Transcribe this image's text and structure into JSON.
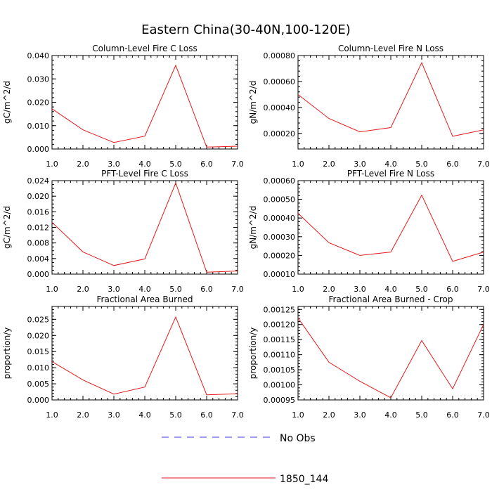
{
  "figure": {
    "title": "Eastern China(30-40N,100-120E)"
  },
  "legend": {
    "entries": [
      {
        "label": "No Obs",
        "color": "#3b3bd9",
        "dash": "dashed"
      },
      {
        "label": "1850_144",
        "color": "#e31a1c",
        "dash": "solid"
      }
    ]
  },
  "chart_data": [
    {
      "type": "line",
      "title": "Column-Level Fire C Loss",
      "ylabel": "gC/m^2/d",
      "xlim": [
        1,
        7
      ],
      "ylim": [
        0,
        0.04
      ],
      "xticks": [
        "1.0",
        "2.0",
        "3.0",
        "4.0",
        "5.0",
        "6.0",
        "7.0"
      ],
      "yticks": [
        0,
        0.01,
        0.02,
        0.03,
        0.04
      ],
      "ytick_labels": [
        "0.000",
        "0.010",
        "0.020",
        "0.030",
        "0.040"
      ],
      "ytick_minor": 0.002,
      "series": [
        {
          "name": "1850_144",
          "color": "#e31a1c",
          "x": [
            1,
            2,
            3,
            4,
            5,
            6,
            7
          ],
          "values": [
            0.0172,
            0.0082,
            0.0028,
            0.0055,
            0.0358,
            0.0008,
            0.0012
          ]
        }
      ]
    },
    {
      "type": "line",
      "title": "Column-Level Fire N Loss",
      "ylabel": "gN/m^2/d",
      "xlim": [
        1,
        7
      ],
      "ylim": [
        8e-05,
        0.0008
      ],
      "xticks": [
        "1.0",
        "2.0",
        "3.0",
        "4.0",
        "5.0",
        "6.0",
        "7.0"
      ],
      "yticks": [
        0.0002,
        0.0004,
        0.0006,
        0.0008
      ],
      "ytick_labels": [
        "0.00020",
        "0.00040",
        "0.00060",
        "0.00080"
      ],
      "ytick_minor": 4e-05,
      "series": [
        {
          "name": "1850_144",
          "color": "#e31a1c",
          "x": [
            1,
            2,
            3,
            4,
            5,
            6,
            7
          ],
          "values": [
            0.0005,
            0.000315,
            0.000212,
            0.000245,
            0.000745,
            0.000178,
            0.000228
          ]
        }
      ]
    },
    {
      "type": "line",
      "title": "PFT-Level Fire C Loss",
      "ylabel": "gC/m^2/d",
      "xlim": [
        1,
        7
      ],
      "ylim": [
        0,
        0.024
      ],
      "xticks": [
        "1.0",
        "2.0",
        "3.0",
        "4.0",
        "5.0",
        "6.0",
        "7.0"
      ],
      "yticks": [
        0,
        0.004,
        0.008,
        0.012,
        0.016,
        0.02,
        0.024
      ],
      "ytick_labels": [
        "0.000",
        "0.004",
        "0.008",
        "0.012",
        "0.016",
        "0.020",
        "0.024"
      ],
      "ytick_minor": 0.001,
      "series": [
        {
          "name": "1850_144",
          "color": "#e31a1c",
          "x": [
            1,
            2,
            3,
            4,
            5,
            6,
            7
          ],
          "values": [
            0.0133,
            0.0057,
            0.0022,
            0.0039,
            0.0234,
            0.0005,
            0.0008
          ]
        }
      ]
    },
    {
      "type": "line",
      "title": "PFT-Level Fire N Loss",
      "ylabel": "gN/m^2/d",
      "xlim": [
        1,
        7
      ],
      "ylim": [
        0.0001,
        0.0006
      ],
      "xticks": [
        "1.0",
        "2.0",
        "3.0",
        "4.0",
        "5.0",
        "6.0",
        "7.0"
      ],
      "yticks": [
        0.0001,
        0.0002,
        0.0003,
        0.0004,
        0.0005,
        0.0006
      ],
      "ytick_labels": [
        "0.00010",
        "0.00020",
        "0.00030",
        "0.00040",
        "0.00050",
        "0.00060"
      ],
      "ytick_minor": 2e-05,
      "series": [
        {
          "name": "1850_144",
          "color": "#e31a1c",
          "x": [
            1,
            2,
            3,
            4,
            5,
            6,
            7
          ],
          "values": [
            0.000425,
            0.000268,
            0.0002,
            0.000218,
            0.000522,
            0.000168,
            0.000218
          ]
        }
      ]
    },
    {
      "type": "line",
      "title": "Fractional Area Burned",
      "ylabel": "proportion/y",
      "xlim": [
        1,
        7
      ],
      "ylim": [
        0,
        0.029
      ],
      "xticks": [
        "1.0",
        "2.0",
        "3.0",
        "4.0",
        "5.0",
        "6.0",
        "7.0"
      ],
      "yticks": [
        0,
        0.005,
        0.01,
        0.015,
        0.02,
        0.025
      ],
      "ytick_labels": [
        "0.000",
        "0.005",
        "0.010",
        "0.015",
        "0.020",
        "0.025"
      ],
      "ytick_minor": 0.001,
      "series": [
        {
          "name": "1850_144",
          "color": "#e31a1c",
          "x": [
            1,
            2,
            3,
            4,
            5,
            6,
            7
          ],
          "values": [
            0.0119,
            0.0062,
            0.0018,
            0.004,
            0.0257,
            0.0016,
            0.0019
          ]
        }
      ]
    },
    {
      "type": "line",
      "title": "Fractional Area Burned - Crop",
      "ylabel": "proportion/y",
      "xlim": [
        1,
        7
      ],
      "ylim": [
        0.00095,
        0.00126
      ],
      "xticks": [
        "1.0",
        "2.0",
        "3.0",
        "4.0",
        "5.0",
        "6.0",
        "7.0"
      ],
      "yticks": [
        0.00095,
        0.001,
        0.00105,
        0.0011,
        0.00115,
        0.0012,
        0.00125
      ],
      "ytick_labels": [
        "0.00095",
        "0.00100",
        "0.00105",
        "0.00110",
        "0.00115",
        "0.00120",
        "0.00125"
      ],
      "ytick_minor": 1e-05,
      "series": [
        {
          "name": "1850_144",
          "color": "#e31a1c",
          "x": [
            1,
            2,
            3,
            4,
            5,
            6,
            7
          ],
          "values": [
            0.001222,
            0.001075,
            0.001012,
            0.000957,
            0.001147,
            0.000987,
            0.0012
          ]
        }
      ]
    }
  ]
}
